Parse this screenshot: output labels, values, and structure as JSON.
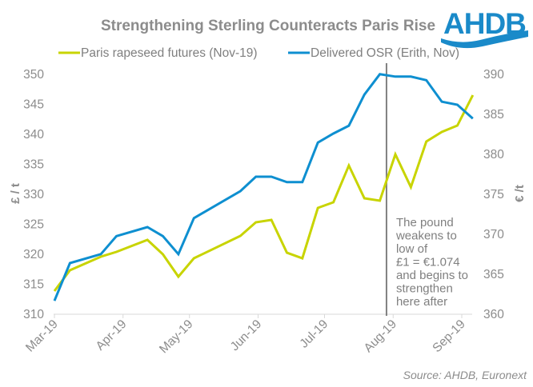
{
  "chart_data": {
    "type": "line",
    "title": "Strengthening Sterling Counteracts Paris Rise",
    "xlabel": "",
    "ylabel": "£ / t",
    "y2label": "€ /t",
    "ylim": [
      310,
      350
    ],
    "y2lim": [
      360,
      390
    ],
    "yticks": [
      310,
      315,
      320,
      325,
      330,
      335,
      340,
      345,
      350
    ],
    "y2ticks": [
      360,
      365,
      370,
      375,
      380,
      385,
      390
    ],
    "x_tick_labels": [
      "Mar-19",
      "Apr-19",
      "May-19",
      "Jun-19",
      "Jul-19",
      "Aug-19",
      "Sep-19"
    ],
    "x_tick_dates": [
      "2019-03-01",
      "2019-04-01",
      "2019-05-01",
      "2019-06-01",
      "2019-07-01",
      "2019-08-01",
      "2019-09-01"
    ],
    "xlim": [
      "2019-03-01",
      "2019-09-10"
    ],
    "grid": false,
    "legend_position": "top",
    "x": [
      "2019-03-01",
      "2019-03-08",
      "2019-03-22",
      "2019-03-29",
      "2019-04-12",
      "2019-04-19",
      "2019-04-26",
      "2019-05-03",
      "2019-05-24",
      "2019-05-31",
      "2019-06-07",
      "2019-06-14",
      "2019-06-21",
      "2019-06-28",
      "2019-07-05",
      "2019-07-12",
      "2019-07-19",
      "2019-07-26",
      "2019-08-02",
      "2019-08-09",
      "2019-08-16",
      "2019-08-23",
      "2019-08-30",
      "2019-09-06"
    ],
    "series": [
      {
        "name": "Paris rapeseed futures (Nov-19)",
        "axis": "right",
        "color": "#c8d400",
        "values": [
          362.8,
          365.4,
          367.1,
          367.7,
          369.2,
          367.4,
          364.6,
          366.9,
          369.7,
          371.4,
          371.7,
          367.6,
          366.9,
          373.2,
          373.9,
          378.5,
          374.4,
          374.1,
          379.9,
          375.8,
          381.5,
          382.7,
          383.5,
          387.3
        ]
      },
      {
        "name": "Delivered OSR (Erith, Nov)",
        "axis": "left",
        "color": "#0e8fd0",
        "values": [
          312.1,
          318.4,
          319.9,
          322.9,
          324.4,
          322.9,
          319.9,
          325.9,
          330.4,
          332.8,
          332.8,
          331.9,
          331.9,
          338.5,
          340.0,
          341.3,
          346.5,
          349.9,
          349.5,
          349.5,
          348.9,
          345.3,
          344.8,
          342.5
        ]
      }
    ],
    "annotation": {
      "marker_date": "2019-07-29",
      "lines": [
        "The pound",
        "weakens to",
        "low of",
        "£1 = €1.074",
        "and begins to",
        "strengthen",
        "here after"
      ]
    },
    "source": "Source: AHDB, Euronext"
  },
  "logo": {
    "text": "AHDB",
    "color": "#1a8ac9"
  }
}
